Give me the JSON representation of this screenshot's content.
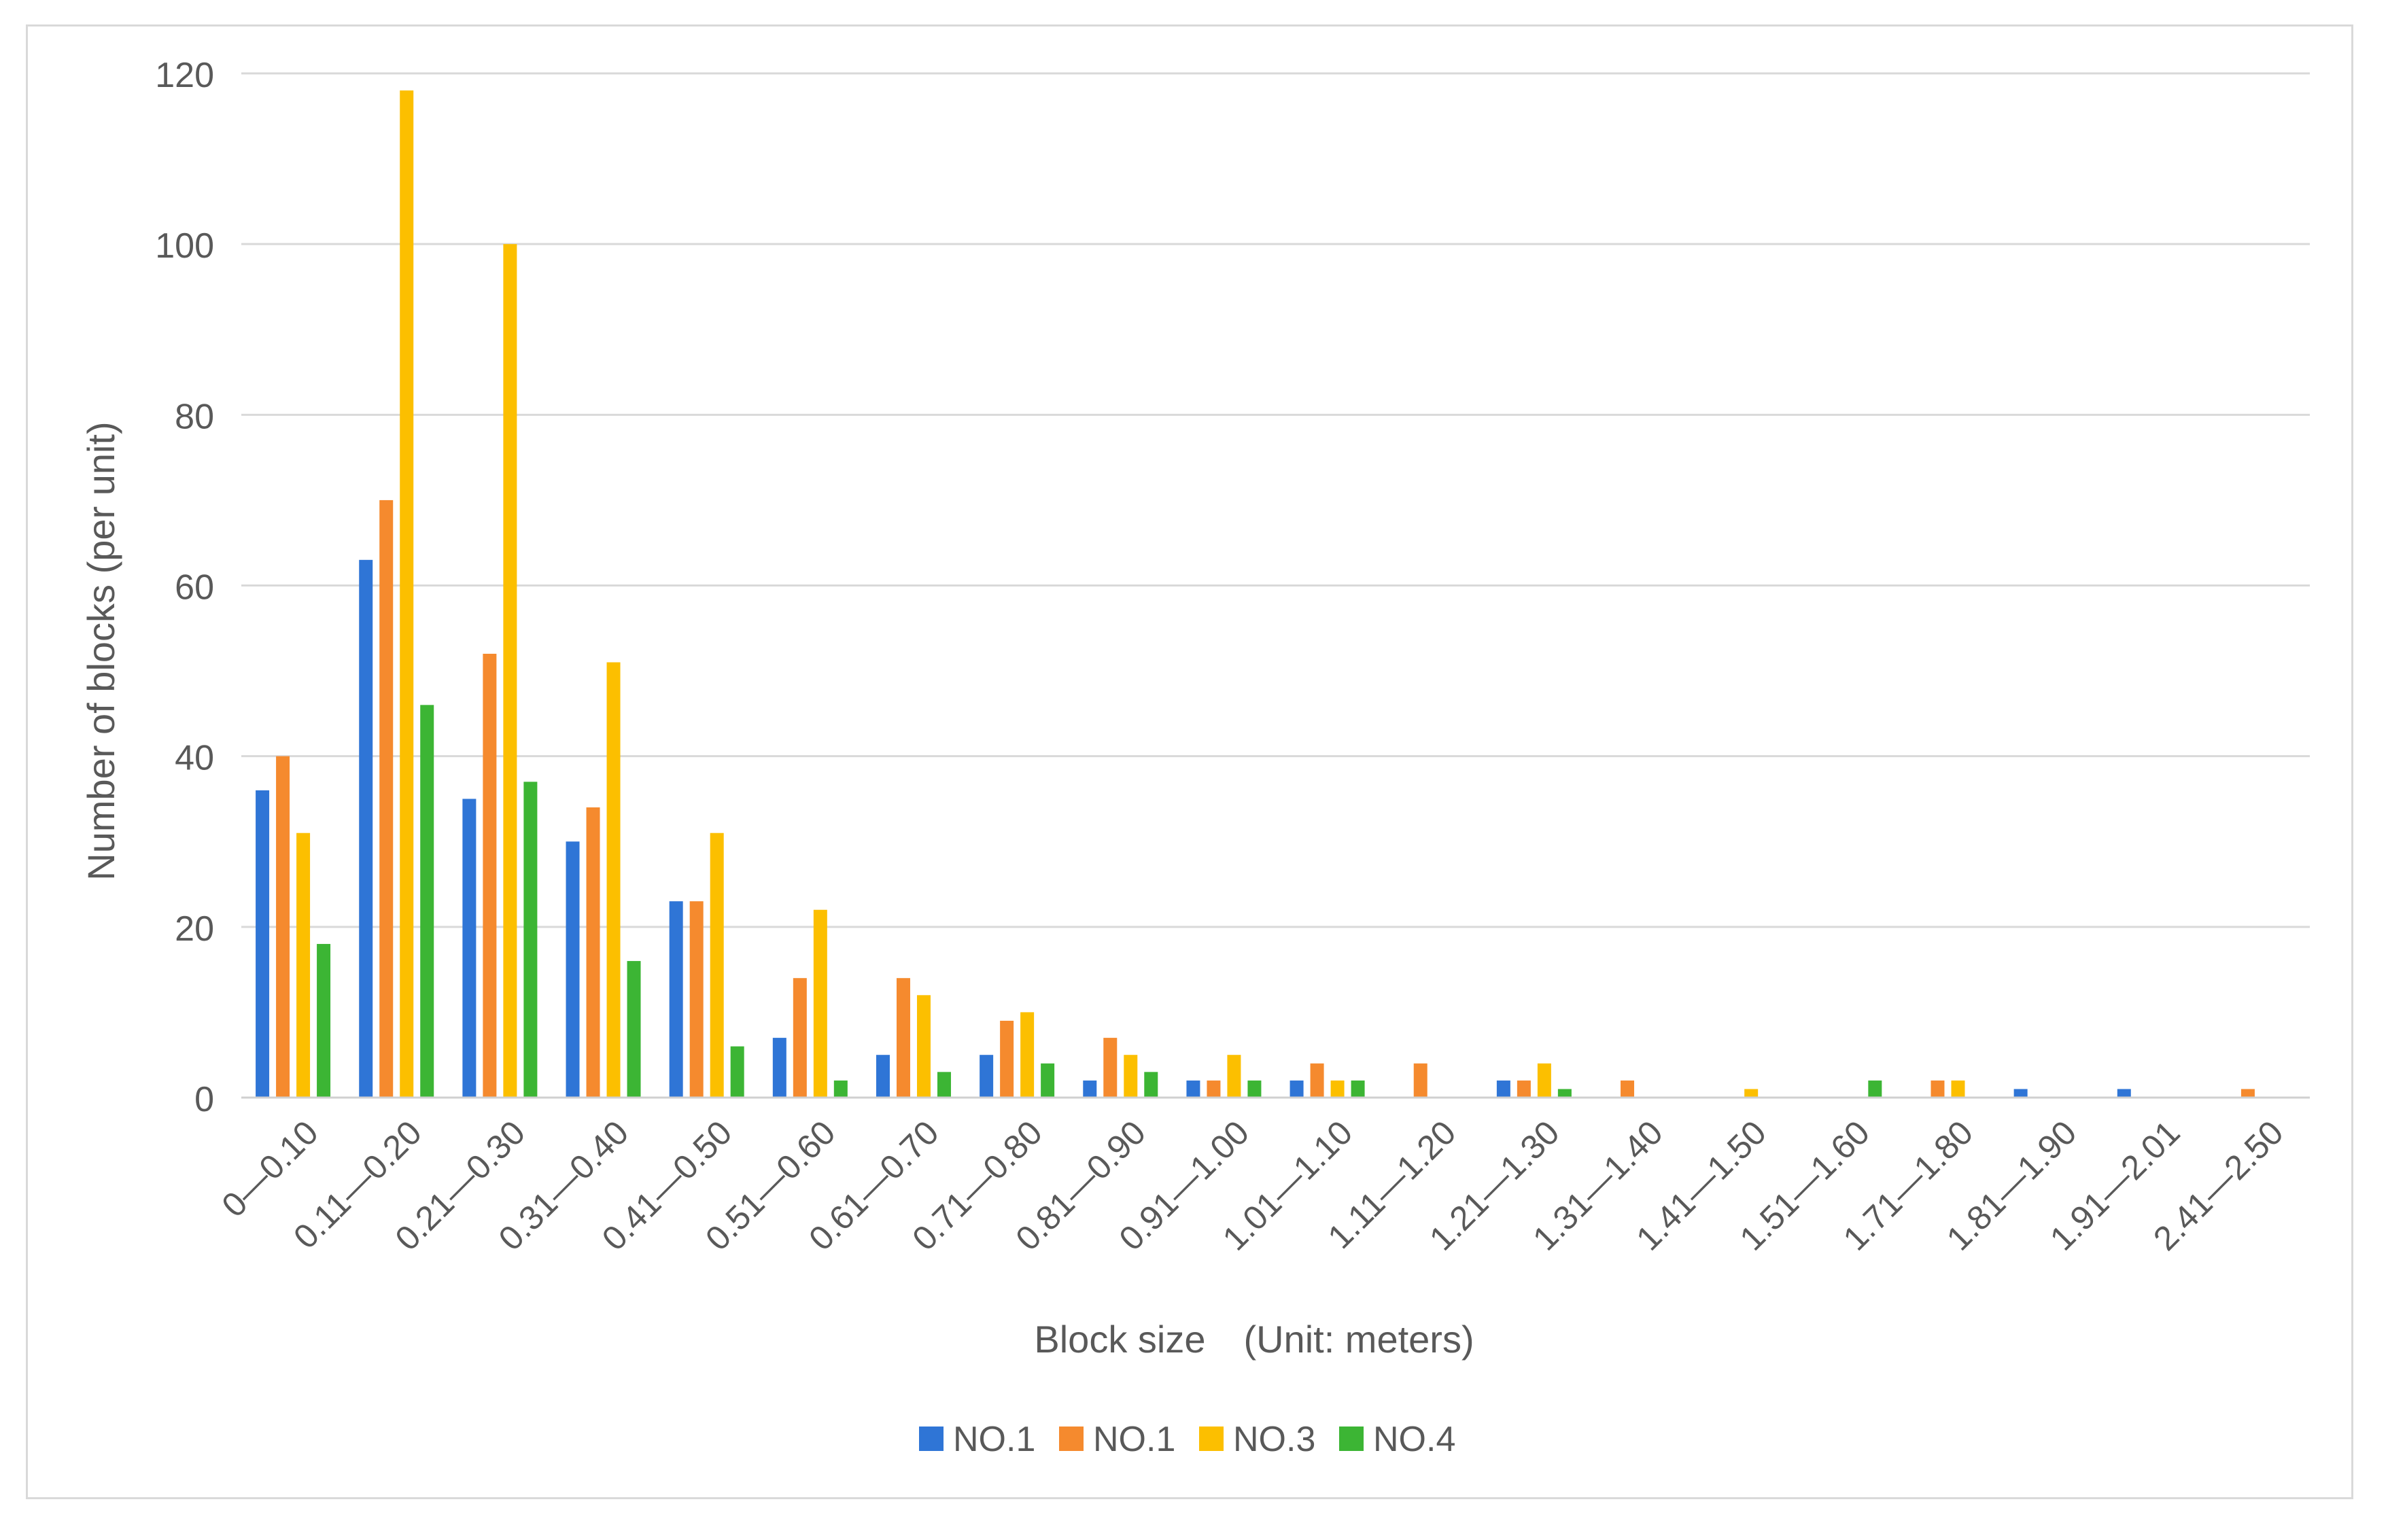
{
  "chart_data": {
    "type": "bar",
    "title": "",
    "xlabel": "Block size　(Unit: meters)",
    "ylabel": "Number of blocks (per unit)",
    "ylim": [
      0,
      120
    ],
    "yticks": [
      0,
      20,
      40,
      60,
      80,
      100,
      120
    ],
    "grid": true,
    "legend_position": "bottom",
    "categories": [
      "0—0.10",
      "0.11—0.20",
      "0.21—0.30",
      "0.31—0.40",
      "0.41—0.50",
      "0.51—0.60",
      "0.61—0.70",
      "0.71—0.80",
      "0.81—0.90",
      "0.91—1.00",
      "1.01—1.10",
      "1.11—1.20",
      "1.21—1.30",
      "1.31—1.40",
      "1.41—1.50",
      "1.51—1.60",
      "1.71—1.80",
      "1.81—1.90",
      "1.91—2.01",
      "2.41—2.50"
    ],
    "series": [
      {
        "name": "NO.1",
        "color": "#2f75d6",
        "values": [
          36,
          63,
          35,
          30,
          23,
          7,
          5,
          5,
          2,
          2,
          2,
          0,
          2,
          0,
          0,
          0,
          0,
          1,
          1,
          0
        ]
      },
      {
        "name": "NO.1",
        "color": "#f58a2e",
        "values": [
          40,
          70,
          52,
          34,
          23,
          14,
          14,
          9,
          7,
          2,
          4,
          4,
          2,
          2,
          0,
          0,
          2,
          0,
          0,
          1
        ]
      },
      {
        "name": "NO.3",
        "color": "#fcbf00",
        "values": [
          31,
          118,
          100,
          51,
          31,
          22,
          12,
          10,
          5,
          5,
          2,
          0,
          4,
          0,
          1,
          0,
          2,
          0,
          0,
          0
        ]
      },
      {
        "name": "NO.4",
        "color": "#3cb534",
        "values": [
          18,
          46,
          37,
          16,
          6,
          2,
          3,
          4,
          3,
          2,
          2,
          0,
          1,
          0,
          0,
          2,
          0,
          0,
          0,
          0
        ]
      }
    ]
  }
}
